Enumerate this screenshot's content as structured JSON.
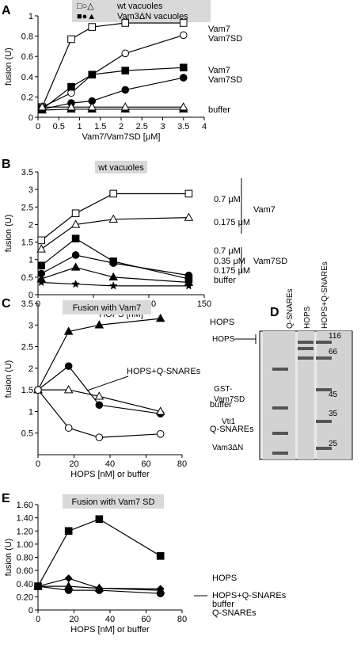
{
  "figure": {
    "gel": {
      "panel_label": "D",
      "lane_labels": [
        "Q-SNAREs",
        "HOPS",
        "HOPS+Q-SNAREs"
      ],
      "band_labels": [
        "HOPS",
        "GST-\nVam7SD",
        "Vti1",
        "Vam3ΔN"
      ],
      "markers": [
        "116",
        "66",
        "45",
        "35",
        "25"
      ]
    }
  },
  "chart_data": [
    {
      "panel": "A",
      "type": "line",
      "xlabel": "Vam7/Vam7SD [μM]",
      "ylabel": "fusion (U)",
      "xlim": [
        0,
        4
      ],
      "ylim": [
        0,
        1
      ],
      "xticks": [
        "0",
        "0.5",
        "1",
        "1.5",
        "2",
        "2.5",
        "3",
        "3.5",
        "4"
      ],
      "yticks": [
        "0",
        "0.2",
        "0.4",
        "0.6",
        "0.8",
        "1"
      ],
      "legend": [
        {
          "symbols": "□○△",
          "label": "wt vacuoles"
        },
        {
          "symbols": "■●▲",
          "label": "Vam3ΔN vacuoles"
        }
      ],
      "series": [
        {
          "name": "Vam7",
          "marker": "square-open",
          "x": [
            0.1,
            0.8,
            1.3,
            2.1,
            3.5
          ],
          "y": [
            0.1,
            0.77,
            0.89,
            0.93,
            0.93
          ]
        },
        {
          "name": "Vam7SD",
          "marker": "circle-open",
          "x": [
            0.1,
            0.8,
            1.3,
            2.1,
            3.5
          ],
          "y": [
            0.1,
            0.24,
            0.42,
            0.63,
            0.81
          ]
        },
        {
          "name": "Vam7",
          "marker": "square-filled",
          "x": [
            0.1,
            0.8,
            1.3,
            2.1,
            3.5
          ],
          "y": [
            0.08,
            0.3,
            0.42,
            0.46,
            0.49
          ]
        },
        {
          "name": "Vam7SD",
          "marker": "circle-filled",
          "x": [
            0.1,
            0.8,
            1.3,
            2.1,
            3.5
          ],
          "y": [
            0.08,
            0.14,
            0.16,
            0.27,
            0.39
          ]
        },
        {
          "name": "buffer",
          "marker": "triangle-filled",
          "x": [
            0.1,
            0.8,
            1.3,
            2.1,
            3.5
          ],
          "y": [
            0.07,
            0.08,
            0.08,
            0.08,
            0.08
          ]
        },
        {
          "name": "",
          "marker": "triangle-open",
          "x": [
            0.1,
            0.8,
            1.3,
            2.1,
            3.5
          ],
          "y": [
            0.1,
            0.1,
            0.1,
            0.1,
            0.1
          ]
        }
      ]
    },
    {
      "panel": "B",
      "type": "line",
      "title": "wt vacuoles",
      "xlabel": "HOPS [nM]",
      "ylabel": "fusion (U)",
      "xlim": [
        0,
        150
      ],
      "ylim": [
        0,
        3.5
      ],
      "xticks": [
        "0",
        "50",
        "100",
        "150"
      ],
      "yticks": [
        "0",
        "0.5",
        "1",
        "1.5",
        "2",
        "2.5",
        "3",
        "3.5"
      ],
      "series": [
        {
          "name": "0.7 μM",
          "marker": "square-open",
          "x": [
            3,
            34,
            68,
            136
          ],
          "y": [
            1.55,
            2.32,
            2.88,
            2.88
          ]
        },
        {
          "name": "0.175 μM",
          "marker": "triangle-open",
          "x": [
            3,
            34,
            68,
            136
          ],
          "y": [
            1.3,
            2.0,
            2.15,
            2.2
          ]
        },
        {
          "name": "0.7 μM",
          "marker": "square-filled",
          "x": [
            3,
            34,
            68,
            136
          ],
          "y": [
            0.83,
            1.6,
            0.95,
            0.45
          ]
        },
        {
          "name": "0.35 μM",
          "marker": "circle-filled",
          "x": [
            3,
            34,
            68,
            136
          ],
          "y": [
            0.6,
            1.13,
            0.9,
            0.55
          ]
        },
        {
          "name": "0.175 μM",
          "marker": "triangle-filled",
          "x": [
            3,
            34,
            68,
            136
          ],
          "y": [
            0.45,
            0.78,
            0.5,
            0.35
          ]
        },
        {
          "name": "buffer",
          "marker": "star",
          "x": [
            3,
            34,
            68,
            136
          ],
          "y": [
            0.35,
            0.3,
            0.25,
            0.25
          ]
        }
      ],
      "annotations": [
        "0.7 μM",
        "0.175 μM",
        "Vam7",
        "0.7 μM",
        "0.35 μM",
        "0.175 μM",
        "Vam7SD",
        "buffer"
      ]
    },
    {
      "panel": "C",
      "type": "line",
      "title": "Fusion with Vam7",
      "xlabel": "HOPS [nM] or buffer",
      "ylabel": "fusion (U)",
      "xlim": [
        0,
        80
      ],
      "ylim": [
        0,
        3.5
      ],
      "xticks": [
        "0",
        "20",
        "40",
        "60",
        "80"
      ],
      "yticks": [
        "0.5",
        "1",
        "1.5",
        "2",
        "2.5",
        "3",
        "3.5"
      ],
      "series": [
        {
          "name": "HOPS",
          "marker": "triangle-filled",
          "x": [
            0,
            17,
            34,
            68
          ],
          "y": [
            1.5,
            2.85,
            3.0,
            3.15
          ]
        },
        {
          "name": "HOPS+Q-SNAREs",
          "marker": "circle-filled",
          "x": [
            0,
            17,
            34,
            68
          ],
          "y": [
            1.5,
            2.05,
            1.15,
            0.95
          ]
        },
        {
          "name": "buffer",
          "marker": "triangle-open",
          "x": [
            0,
            17,
            34,
            68
          ],
          "y": [
            1.5,
            1.5,
            1.35,
            1.0
          ]
        },
        {
          "name": "Q-SNAREs",
          "marker": "circle-open",
          "x": [
            0,
            17,
            34,
            68
          ],
          "y": [
            1.5,
            0.62,
            0.4,
            0.48
          ]
        }
      ]
    },
    {
      "panel": "E",
      "type": "line",
      "title": "Fusion with Vam7 SD",
      "xlabel": "HOPS [nM] or buffer",
      "ylabel": "fusion (U)",
      "xlim": [
        0,
        80
      ],
      "ylim": [
        0,
        1.6
      ],
      "xticks": [
        "0",
        "20",
        "40",
        "60",
        "80"
      ],
      "yticks": [
        "0",
        "0.20",
        "0.40",
        "0.60",
        "0.80",
        "1.00",
        "1.20",
        "1.40",
        "1.60"
      ],
      "series": [
        {
          "name": "HOPS",
          "marker": "square-filled",
          "x": [
            0,
            17,
            34,
            68
          ],
          "y": [
            0.36,
            1.2,
            1.38,
            0.82
          ]
        },
        {
          "name": "HOPS+Q-SNAREs",
          "marker": "diamond-filled",
          "x": [
            0,
            17,
            34,
            68
          ],
          "y": [
            0.36,
            0.48,
            0.33,
            0.32
          ]
        },
        {
          "name": "buffer",
          "marker": "triangle-filled",
          "x": [
            0,
            17,
            34,
            68
          ],
          "y": [
            0.36,
            0.36,
            0.33,
            0.3
          ]
        },
        {
          "name": "Q-SNAREs",
          "marker": "circle-filled",
          "x": [
            0,
            17,
            34,
            68
          ],
          "y": [
            0.36,
            0.3,
            0.3,
            0.25
          ]
        }
      ]
    }
  ]
}
